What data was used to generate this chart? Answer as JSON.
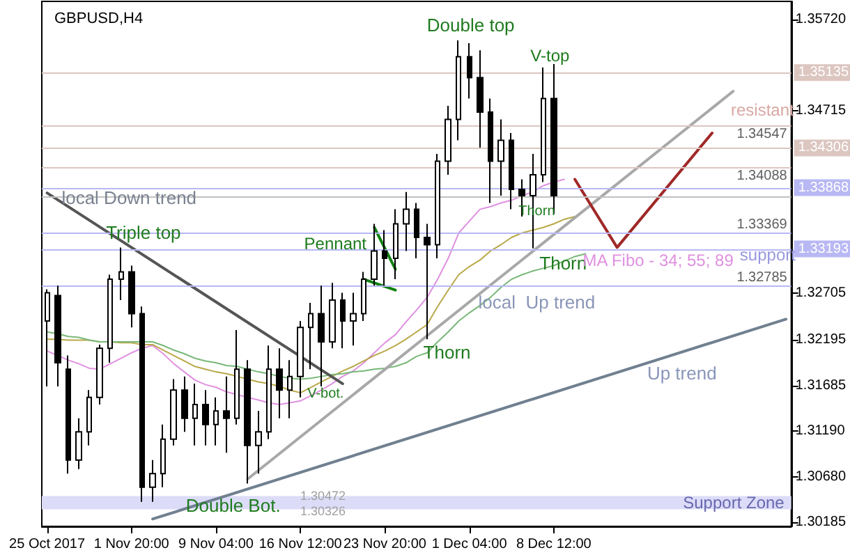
{
  "chart_data": {
    "type": "candlestick",
    "title": "GBPUSD,H4",
    "color": "#000000",
    "categories": [
      "25 Oct 2017",
      null,
      null,
      null,
      null,
      null,
      null,
      null,
      "1 Nov 20:00",
      null,
      null,
      null,
      null,
      null,
      null,
      null,
      "9 Nov 04:00",
      null,
      null,
      null,
      null,
      null,
      null,
      null,
      "16 Nov 12:00",
      null,
      null,
      null,
      null,
      null,
      null,
      null,
      "23 Nov 20:00",
      null,
      null,
      null,
      null,
      null,
      null,
      null,
      "1 Dec 04:00",
      null,
      null,
      null,
      null,
      null,
      null,
      null,
      "8 Dec 12:00",
      null,
      null,
      null,
      null,
      null,
      null,
      null,
      null,
      null,
      null,
      null,
      null,
      null,
      null,
      null,
      null,
      null,
      null,
      null,
      null,
      null,
      null
    ],
    "ohlc": [
      [
        1.324,
        1.3275,
        1.3168,
        1.3271
      ],
      [
        1.3268,
        1.3279,
        1.3168,
        1.3194
      ],
      [
        1.3187,
        1.3202,
        1.3072,
        1.3087
      ],
      [
        1.3087,
        1.3133,
        1.3077,
        1.3118
      ],
      [
        1.3118,
        1.3164,
        1.3103,
        1.3156
      ],
      [
        1.3156,
        1.3214,
        1.3148,
        1.321
      ],
      [
        1.321,
        1.3291,
        1.3194,
        1.3286
      ],
      [
        1.3286,
        1.3321,
        1.3263,
        1.3294
      ],
      [
        1.3294,
        1.3301,
        1.3233,
        1.3248
      ],
      [
        1.3248,
        1.3256,
        1.3041,
        1.3057
      ],
      [
        1.3057,
        1.3087,
        1.3041,
        1.3072
      ],
      [
        1.3072,
        1.3126,
        1.3057,
        1.311
      ],
      [
        1.311,
        1.3176,
        1.3103,
        1.3164
      ],
      [
        1.3164,
        1.3179,
        1.3118,
        1.3133
      ],
      [
        1.3133,
        1.3171,
        1.3103,
        1.3148
      ],
      [
        1.3148,
        1.3164,
        1.3103,
        1.3126
      ],
      [
        1.3126,
        1.3156,
        1.3103,
        1.3141
      ],
      [
        1.3141,
        1.3179,
        1.3095,
        1.3133
      ],
      [
        1.3133,
        1.323,
        1.3126,
        1.3187
      ],
      [
        1.3187,
        1.3197,
        1.3061,
        1.3103
      ],
      [
        1.3103,
        1.3141,
        1.3072,
        1.3118
      ],
      [
        1.3118,
        1.3213,
        1.311,
        1.3187
      ],
      [
        1.3187,
        1.321,
        1.3133,
        1.3164
      ],
      [
        1.3164,
        1.3197,
        1.3133,
        1.3179
      ],
      [
        1.3179,
        1.324,
        1.3156,
        1.3233
      ],
      [
        1.3233,
        1.326,
        1.3187,
        1.3248
      ],
      [
        1.3248,
        1.3279,
        1.3168,
        1.3217
      ],
      [
        1.3217,
        1.3282,
        1.321,
        1.3263
      ],
      [
        1.3263,
        1.3271,
        1.321,
        1.324
      ],
      [
        1.324,
        1.3271,
        1.3213,
        1.3248
      ],
      [
        1.3248,
        1.3294,
        1.324,
        1.3286
      ],
      [
        1.3286,
        1.3347,
        1.3279,
        1.3317
      ],
      [
        1.3317,
        1.334,
        1.3279,
        1.3309
      ],
      [
        1.3309,
        1.3363,
        1.3286,
        1.3347
      ],
      [
        1.3347,
        1.3382,
        1.3317,
        1.3363
      ],
      [
        1.3363,
        1.337,
        1.3309,
        1.3332
      ],
      [
        1.3332,
        1.3347,
        1.322,
        1.3324
      ],
      [
        1.3324,
        1.3424,
        1.3309,
        1.3416
      ],
      [
        1.3416,
        1.3477,
        1.3401,
        1.3462
      ],
      [
        1.3462,
        1.3549,
        1.3439,
        1.3531
      ],
      [
        1.3531,
        1.3546,
        1.3485,
        1.3508
      ],
      [
        1.3508,
        1.3538,
        1.3431,
        1.347
      ],
      [
        1.347,
        1.3485,
        1.337,
        1.3416
      ],
      [
        1.3416,
        1.3462,
        1.3378,
        1.3439
      ],
      [
        1.3439,
        1.3447,
        1.3363,
        1.3385
      ],
      [
        1.3385,
        1.3396,
        1.3355,
        1.3378
      ],
      [
        1.3378,
        1.3424,
        1.332,
        1.3401
      ],
      [
        1.3401,
        1.3519,
        1.3393,
        1.3485
      ],
      [
        1.3485,
        1.3523,
        1.3358,
        1.3378
      ],
      null,
      null,
      null,
      null,
      null,
      null,
      null,
      null,
      null,
      null,
      null,
      null,
      null,
      null,
      null,
      null,
      null,
      null,
      null,
      null,
      null,
      null
    ],
    "series": [
      {
        "type": "line",
        "color": "#e090e0",
        "values": [
          1.3207,
          1.3202,
          1.3197,
          1.3193,
          1.3188,
          1.3187,
          1.3193,
          1.3199,
          1.3205,
          1.321,
          1.3213,
          1.3204,
          1.3193,
          1.3184,
          1.3175,
          1.317,
          1.3167,
          1.3162,
          1.3159,
          1.3156,
          1.3153,
          1.315,
          1.3148,
          1.315,
          1.3152,
          1.3158,
          1.3164,
          1.3171,
          1.3179,
          1.3185,
          1.3194,
          1.3205,
          1.3216,
          1.3225,
          1.3239,
          1.3252,
          1.3266,
          1.3286,
          1.3309,
          1.3337,
          1.335,
          1.3363,
          1.3366,
          1.337,
          1.3373,
          1.3378,
          1.3382,
          1.3389,
          1.3393,
          1.3396,
          null,
          null,
          null,
          null,
          null,
          null,
          null,
          null,
          null,
          null,
          null,
          null,
          null,
          null,
          null,
          null,
          null,
          null,
          null,
          null,
          null
        ]
      },
      {
        "type": "line",
        "color": "#b8a848",
        "values": [
          1.322,
          1.322,
          1.3219,
          1.3219,
          1.3219,
          1.3217,
          1.3217,
          1.3216,
          1.3216,
          1.3214,
          1.3214,
          1.3208,
          1.3202,
          1.3196,
          1.319,
          1.3187,
          1.3184,
          1.3182,
          1.3179,
          1.3176,
          1.3173,
          1.3171,
          1.3168,
          1.3164,
          1.3161,
          1.3167,
          1.3173,
          1.3179,
          1.3185,
          1.319,
          1.3196,
          1.3202,
          1.3207,
          1.3213,
          1.322,
          1.3228,
          1.3236,
          1.3256,
          1.3274,
          1.3291,
          1.33,
          1.3307,
          1.3317,
          1.3324,
          1.3332,
          1.3337,
          1.334,
          1.3343,
          1.3347,
          1.3352,
          1.3355,
          null,
          null,
          null,
          null,
          null,
          null,
          null,
          null,
          null,
          null,
          null,
          null,
          null,
          null,
          null,
          null,
          null,
          null,
          null,
          null
        ]
      },
      {
        "type": "line",
        "color": "#78b878",
        "values": [
          1.3228,
          1.3226,
          1.3223,
          1.3222,
          1.3219,
          1.3217,
          1.3217,
          1.3217,
          1.3217,
          1.3217,
          1.3217,
          1.3213,
          1.3208,
          1.3204,
          1.3199,
          1.3196,
          1.3194,
          1.3191,
          1.319,
          1.3187,
          1.3184,
          1.3182,
          1.3179,
          1.3177,
          1.3176,
          1.3177,
          1.3179,
          1.3181,
          1.3182,
          1.3184,
          1.3185,
          1.3187,
          1.3188,
          1.319,
          1.3194,
          1.3201,
          1.3205,
          1.3217,
          1.3228,
          1.324,
          1.3249,
          1.3257,
          1.3266,
          1.3277,
          1.3286,
          1.3291,
          1.3295,
          1.3298,
          1.3301,
          1.3306,
          1.3311,
          1.3314,
          null,
          null,
          null,
          null,
          null,
          null,
          null,
          null,
          null,
          null,
          null,
          null,
          null,
          null,
          null,
          null,
          null,
          null,
          null
        ]
      },
      {
        "type": "line",
        "color": "#555555",
        "values": [
          1.3381,
          null,
          null,
          null,
          null,
          null,
          null,
          null,
          null,
          null,
          null,
          null,
          null,
          null,
          null,
          null,
          null,
          null,
          null,
          null,
          null,
          null,
          null,
          null,
          null,
          null,
          null,
          null,
          1.3171,
          null,
          null,
          null,
          null,
          null,
          null,
          null,
          null,
          null,
          null,
          null,
          null,
          null,
          null,
          null,
          null,
          null,
          null,
          null,
          null,
          null,
          null,
          null,
          null,
          null,
          null,
          null,
          null,
          null,
          null,
          null,
          null,
          null,
          null,
          null,
          null,
          null,
          null,
          null,
          null,
          null,
          null
        ]
      },
      {
        "type": "line",
        "color": "#a8a8a8",
        "values": [
          null,
          null,
          null,
          null,
          null,
          null,
          null,
          null,
          null,
          null,
          null,
          null,
          null,
          null,
          null,
          null,
          null,
          null,
          null,
          1.3066,
          null,
          null,
          null,
          null,
          null,
          null,
          null,
          null,
          null,
          null,
          null,
          null,
          null,
          null,
          null,
          null,
          null,
          null,
          null,
          null,
          null,
          null,
          null,
          null,
          null,
          null,
          null,
          null,
          null,
          null,
          null,
          null,
          null,
          null,
          null,
          null,
          null,
          null,
          null,
          null,
          null,
          null,
          null,
          null,
          null,
          1.3493,
          null,
          null,
          null,
          null,
          null
        ]
      },
      {
        "type": "line",
        "color": "#708090",
        "values": [
          null,
          null,
          null,
          null,
          null,
          null,
          null,
          null,
          null,
          null,
          1.3022,
          null,
          null,
          null,
          null,
          null,
          null,
          null,
          null,
          null,
          null,
          null,
          null,
          null,
          null,
          null,
          null,
          null,
          null,
          null,
          null,
          null,
          null,
          null,
          null,
          null,
          null,
          null,
          null,
          null,
          null,
          null,
          null,
          null,
          null,
          null,
          null,
          null,
          null,
          null,
          null,
          null,
          null,
          null,
          null,
          null,
          null,
          null,
          null,
          null,
          null,
          null,
          null,
          null,
          null,
          null,
          null,
          null,
          null,
          null,
          1.3242
        ]
      },
      {
        "type": "line",
        "color": "#a02828",
        "values": [
          null,
          null,
          null,
          null,
          null,
          null,
          null,
          null,
          null,
          null,
          null,
          null,
          null,
          null,
          null,
          null,
          null,
          null,
          null,
          null,
          null,
          null,
          null,
          null,
          null,
          null,
          null,
          null,
          null,
          null,
          null,
          null,
          null,
          null,
          null,
          null,
          null,
          null,
          null,
          null,
          null,
          null,
          null,
          null,
          null,
          null,
          null,
          null,
          null,
          null,
          1.3396,
          null,
          null,
          null,
          1.3321,
          null,
          null,
          null,
          null,
          null,
          null,
          null,
          null,
          1.3447,
          null,
          null,
          null,
          null,
          null,
          null,
          null
        ]
      },
      {
        "type": "line",
        "color": "#108010",
        "values": [
          null,
          null,
          null,
          null,
          null,
          null,
          null,
          null,
          null,
          null,
          null,
          null,
          null,
          null,
          null,
          null,
          null,
          null,
          null,
          null,
          null,
          null,
          null,
          null,
          null,
          null,
          null,
          null,
          null,
          null,
          null,
          1.3343,
          null,
          1.3297,
          null,
          null,
          null,
          null,
          null,
          null,
          null,
          null,
          null,
          null,
          null,
          null,
          null,
          null,
          null,
          null,
          null,
          null,
          null,
          null,
          null,
          null,
          null,
          null,
          null,
          null,
          null,
          null,
          null,
          null,
          null,
          null,
          null,
          null,
          null,
          null,
          null
        ]
      },
      {
        "type": "line",
        "color": "#108010",
        "values": [
          null,
          null,
          null,
          null,
          null,
          null,
          null,
          null,
          null,
          null,
          null,
          null,
          null,
          null,
          null,
          null,
          null,
          null,
          null,
          null,
          null,
          null,
          null,
          null,
          null,
          null,
          null,
          null,
          null,
          null,
          1.3286,
          null,
          null,
          1.3274,
          null,
          null,
          null,
          null,
          null,
          null,
          null,
          null,
          null,
          null,
          null,
          null,
          null,
          null,
          null,
          null,
          null,
          null,
          null,
          null,
          null,
          null,
          null,
          null,
          null,
          null,
          null,
          null,
          null,
          null,
          null,
          null,
          null,
          null,
          null,
          null,
          null
        ]
      }
    ],
    "ylim": [
      1.30139,
      1.35919
    ],
    "yticks": [
      {
        "value": 1.30185,
        "label": "1.30185"
      },
      {
        "value": 1.3068,
        "label": "1.30680"
      },
      {
        "value": 1.3119,
        "label": "1.31190"
      },
      {
        "value": 1.31685,
        "label": "1.31685"
      },
      {
        "value": 1.32195,
        "label": "1.32195"
      },
      {
        "value": 1.32705,
        "label": "1.32705"
      },
      {
        "value": 1.34715,
        "label": "1.34715"
      },
      {
        "value": 1.3572,
        "label": "1.35720"
      }
    ],
    "ref_lines": [
      {
        "axis": "y",
        "value": 1.35135,
        "label": "1.35135",
        "color": "#dcc6c0"
      },
      {
        "axis": "y",
        "value": 1.34547,
        "label": "1.34547",
        "color": "#dcc6c0"
      },
      {
        "axis": "y",
        "value": 1.34306,
        "label": "1.34306",
        "color": "#dcc6c0"
      },
      {
        "axis": "y",
        "value": 1.34088,
        "label": "1.34088",
        "color": "#dcc6c0"
      },
      {
        "axis": "y",
        "value": 1.33868,
        "label": "1.33868",
        "color": "#b8b8f4"
      },
      {
        "axis": "y",
        "value": 1.33369,
        "label": "1.33369",
        "color": "#b8b8f4"
      },
      {
        "axis": "y",
        "value": 1.33193,
        "label": "1.33193",
        "color": "#b8b8f4"
      },
      {
        "axis": "y",
        "value": 1.32785,
        "label": "1.32785",
        "color": "#b8b8f4"
      },
      {
        "axis": "y",
        "value": 1.3377,
        "color": "#c0c0c0"
      }
    ],
    "bands": [
      {
        "axis": "y",
        "from": 1.30326,
        "to": 1.30472,
        "label": "Support Zone",
        "color": "#dcdcf8"
      }
    ],
    "annotations": [
      "Double top",
      "V-top",
      "Triple top",
      "Pennant",
      "Thorn",
      "Thorn",
      "Thorn",
      "local Down trend",
      "local  Up trend",
      "Up trend",
      "V-bot.",
      "Double Bot.",
      "MA Fibo - 34; 55; 89",
      "resistant",
      "support",
      "1.30472",
      "1.30326"
    ],
    "grid": false
  }
}
